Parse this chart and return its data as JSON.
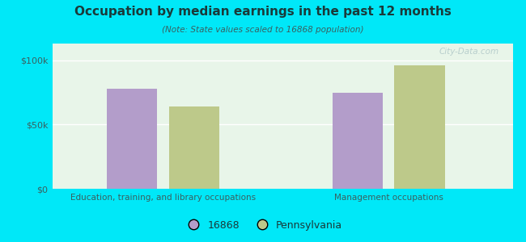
{
  "title": "Occupation by median earnings in the past 12 months",
  "subtitle": "(Note: State values scaled to 16868 population)",
  "categories": [
    "Education, training, and library occupations",
    "Management occupations"
  ],
  "values_16868": [
    78000,
    75000
  ],
  "values_pa": [
    64000,
    96000
  ],
  "color_16868": "#b39dca",
  "color_pa": "#bdc98a",
  "background_outer": "#00e8f8",
  "background_plot": "#e8f5e9",
  "yticks": [
    0,
    50000,
    100000
  ],
  "ytick_labels": [
    "$0",
    "$50k",
    "$100k"
  ],
  "ylim": [
    0,
    113000
  ],
  "legend_label_1": "16868",
  "legend_label_2": "Pennsylvania",
  "watermark": "City-Data.com",
  "title_color": "#1a3a3a",
  "subtitle_color": "#3a6060",
  "tick_color": "#3a6060",
  "watermark_color": "#b0c8c8"
}
